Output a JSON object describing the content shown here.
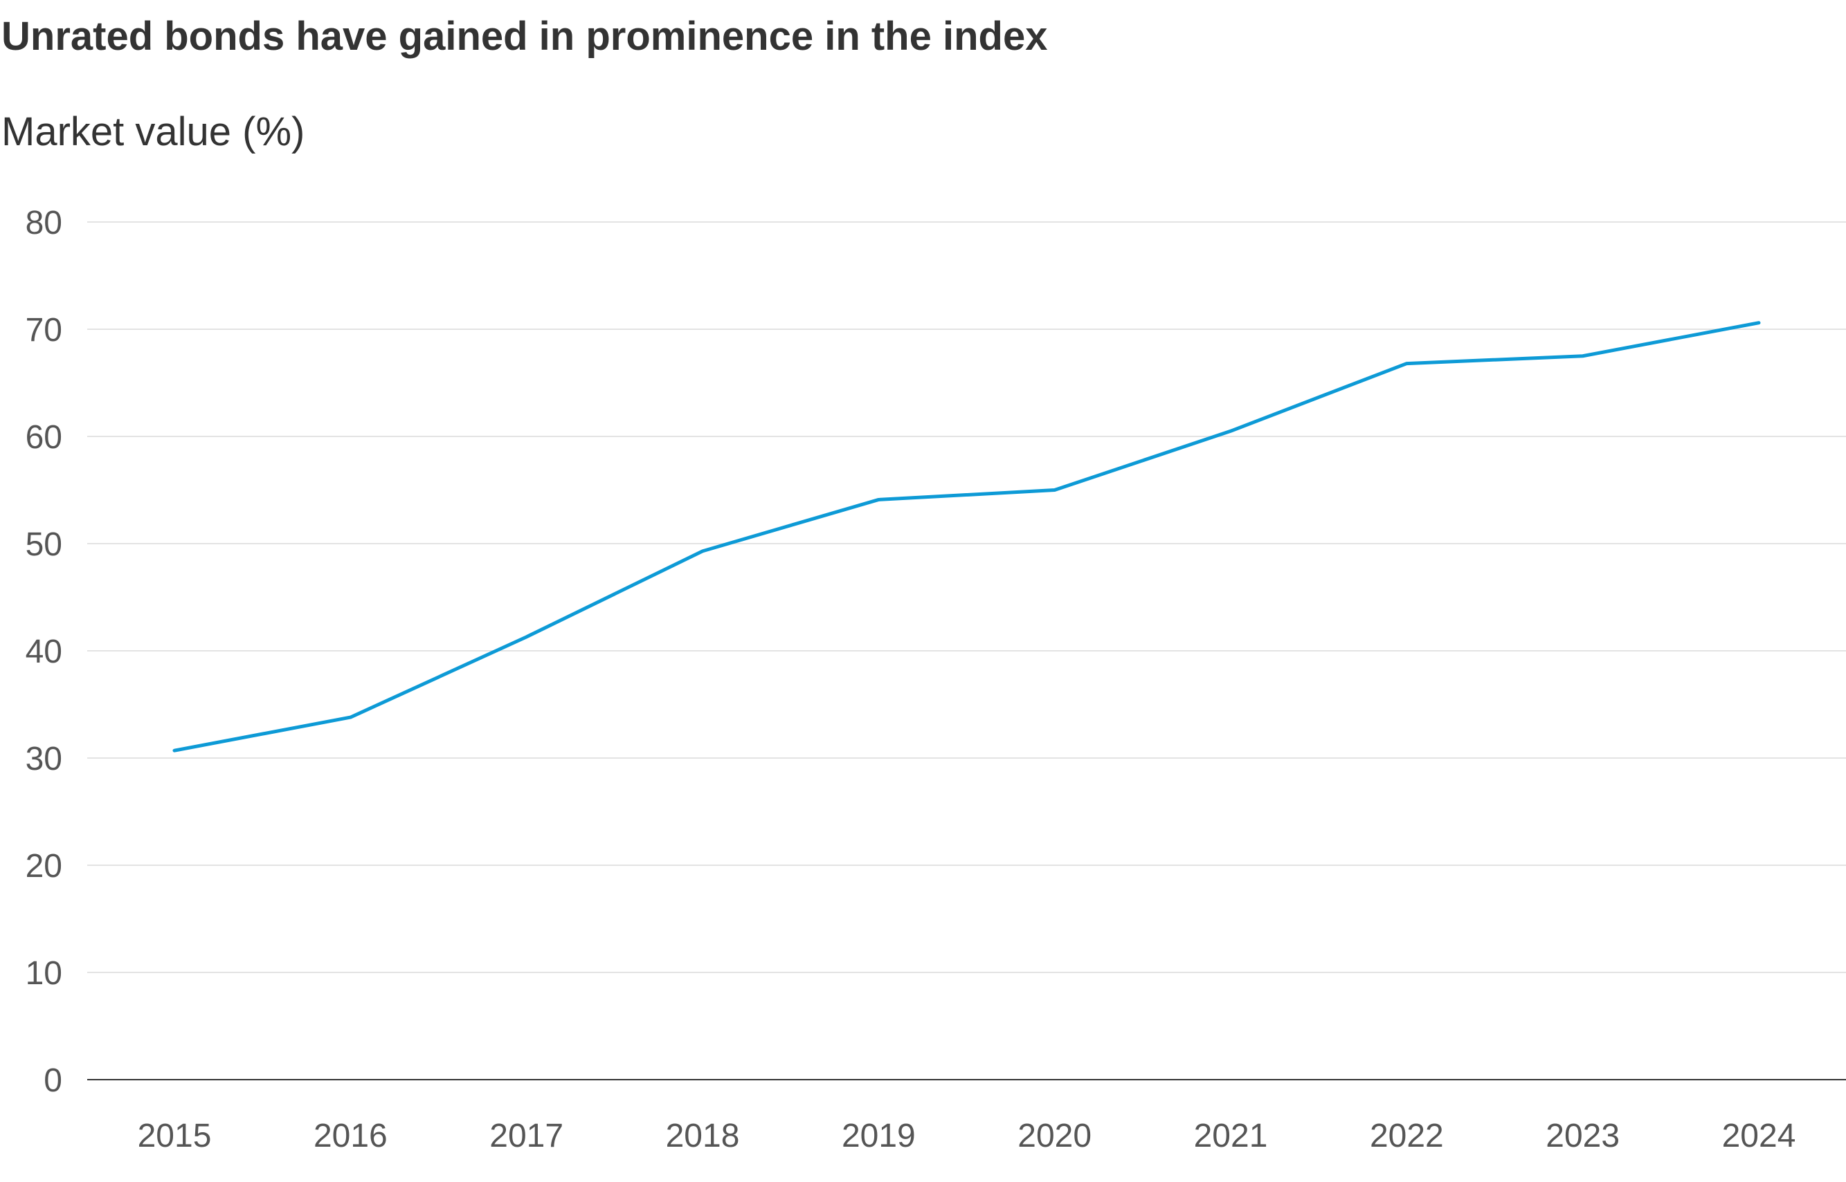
{
  "chart_data": {
    "type": "line",
    "title": "Unrated bonds have gained in prominence in the index",
    "ylabel": "Market value (%)",
    "xlabel": "",
    "categories": [
      "2015",
      "2016",
      "2017",
      "2018",
      "2019",
      "2020",
      "2021",
      "2022",
      "2023",
      "2024"
    ],
    "values": [
      30.7,
      33.8,
      41.3,
      49.3,
      54.1,
      55.0,
      60.5,
      66.8,
      67.5,
      70.6
    ],
    "ylim": [
      0,
      80
    ],
    "yticks": [
      "0",
      "10",
      "20",
      "30",
      "40",
      "50",
      "60",
      "70",
      "80"
    ],
    "grid": true,
    "legend": "none",
    "line_color": "#0d9ad6",
    "grid_color": "#e3e3e3",
    "axis_color": "#333333"
  }
}
